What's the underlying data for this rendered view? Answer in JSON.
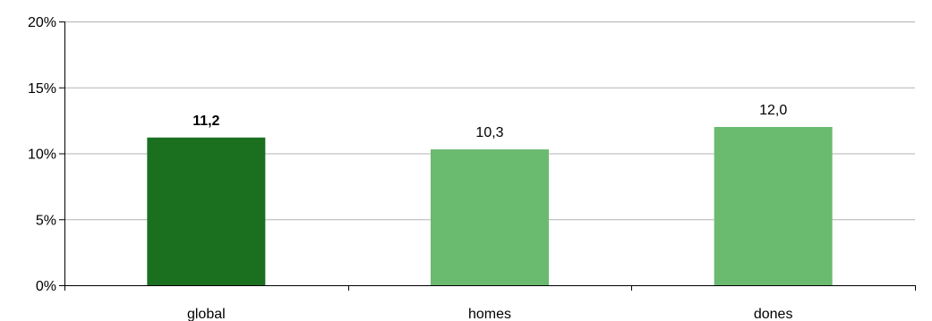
{
  "chart_data": {
    "type": "bar",
    "categories": [
      "global",
      "homes",
      "dones"
    ],
    "values": [
      11.2,
      10.3,
      12.0
    ],
    "data_labels": [
      "11,2",
      "10,3",
      "12,0"
    ],
    "highlight_index": 0,
    "ylim": [
      0,
      20
    ],
    "y_ticks": [
      0,
      5,
      10,
      15,
      20
    ],
    "y_tick_labels": [
      "0%",
      "5%",
      "10%",
      "15%",
      "20%"
    ],
    "grid": true,
    "legend": "none",
    "colors": {
      "highlight": "#1b7020",
      "bar": "#6aba70",
      "grid": "#b3b3b3",
      "axis": "#000000"
    }
  }
}
